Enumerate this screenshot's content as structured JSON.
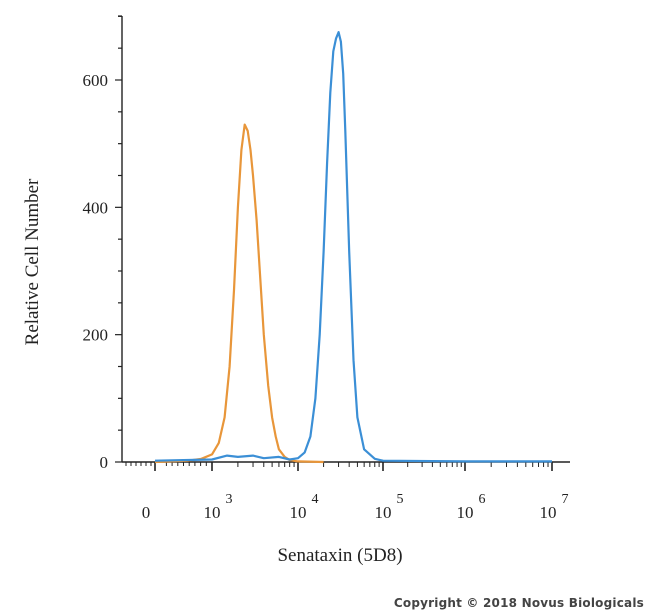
{
  "chart_data": {
    "type": "line",
    "title": "",
    "xlabel": "Senataxin (5D8)",
    "ylabel": "Relative Cell Number",
    "x_scale": "log",
    "x_tick_labels": [
      {
        "base": "0",
        "exp": ""
      },
      {
        "base": "10",
        "exp": "3"
      },
      {
        "base": "10",
        "exp": "4"
      },
      {
        "base": "10",
        "exp": "5"
      },
      {
        "base": "10",
        "exp": "6"
      },
      {
        "base": "10",
        "exp": "7"
      }
    ],
    "y_ticks": [
      0,
      200,
      400,
      600
    ],
    "ylim": [
      0,
      700
    ],
    "series": [
      {
        "color": "#e8963a",
        "x": [
          300,
          600,
          800,
          1000,
          1200,
          1400,
          1600,
          1800,
          2000,
          2200,
          2400,
          2600,
          2800,
          3000,
          3300,
          3600,
          4000,
          4500,
          5000,
          5500,
          6000,
          7000,
          8000,
          10000,
          20000
        ],
        "y": [
          0,
          2,
          5,
          12,
          30,
          70,
          150,
          270,
          400,
          490,
          530,
          520,
          490,
          450,
          380,
          300,
          200,
          120,
          70,
          40,
          20,
          8,
          3,
          1,
          0
        ]
      },
      {
        "color": "#3b8fd6",
        "x": [
          300,
          1000,
          1500,
          2000,
          3000,
          4000,
          6000,
          8000,
          10000,
          12000,
          14000,
          16000,
          18000,
          20000,
          22000,
          24000,
          26000,
          28000,
          30000,
          32000,
          34000,
          36000,
          40000,
          45000,
          50000,
          60000,
          80000,
          100000,
          1000000,
          10000000
        ],
        "y": [
          2,
          4,
          10,
          8,
          10,
          6,
          8,
          4,
          6,
          15,
          40,
          100,
          200,
          330,
          470,
          580,
          645,
          665,
          675,
          660,
          610,
          520,
          330,
          160,
          70,
          20,
          5,
          2,
          1,
          1
        ]
      }
    ]
  },
  "copyright": "Copyright © 2018 Novus Biologicals"
}
